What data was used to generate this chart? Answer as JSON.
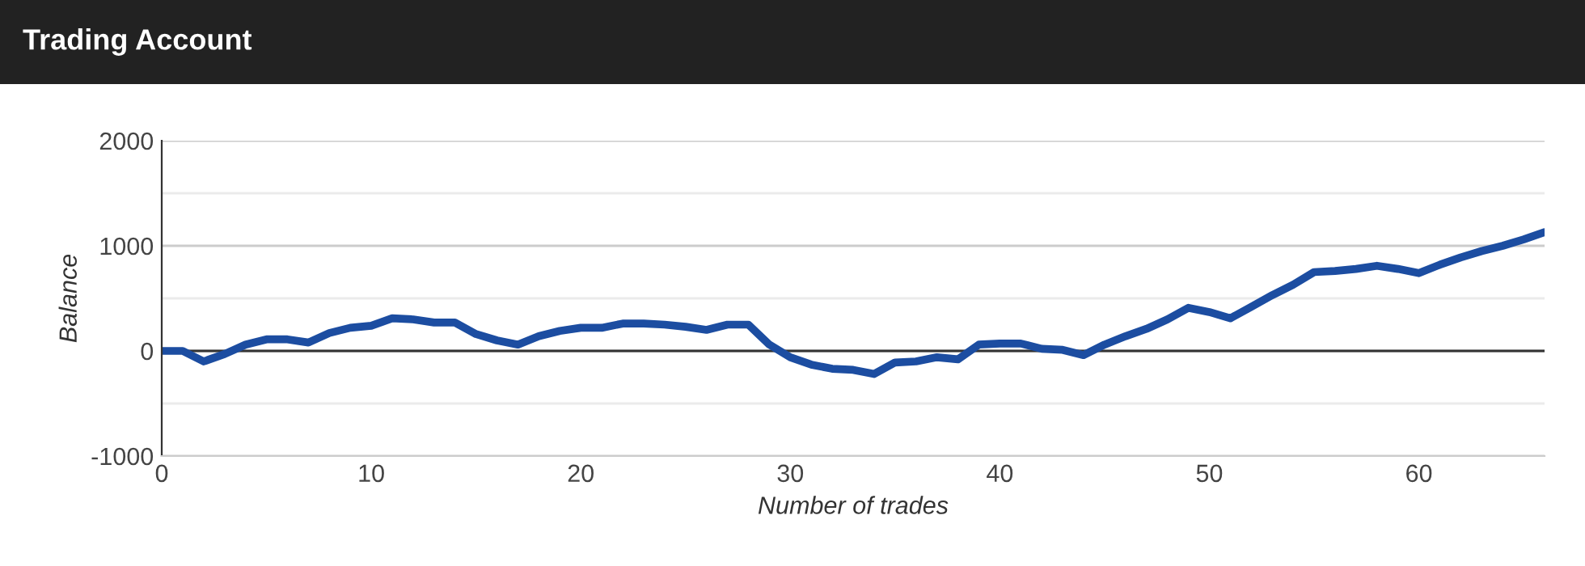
{
  "chart_data": {
    "type": "line",
    "title": "Trading Account",
    "xlabel": "Number of trades",
    "ylabel": "Balance",
    "x": [
      0,
      1,
      2,
      3,
      4,
      5,
      6,
      7,
      8,
      9,
      10,
      11,
      12,
      13,
      14,
      15,
      16,
      17,
      18,
      19,
      20,
      21,
      22,
      23,
      24,
      25,
      26,
      27,
      28,
      29,
      30,
      31,
      32,
      33,
      34,
      35,
      36,
      37,
      38,
      39,
      40,
      41,
      42,
      43,
      44,
      45,
      46,
      47,
      48,
      49,
      50,
      51,
      52,
      53,
      54,
      55,
      56,
      57,
      58,
      59,
      60,
      61,
      62,
      63,
      64,
      65,
      66
    ],
    "series": [
      {
        "color": "#1c4da1",
        "values": [
          0,
          0,
          -100,
          -30,
          60,
          110,
          110,
          80,
          170,
          220,
          240,
          310,
          300,
          270,
          270,
          160,
          100,
          60,
          140,
          190,
          220,
          220,
          260,
          260,
          250,
          230,
          200,
          250,
          250,
          60,
          -60,
          -130,
          -170,
          -180,
          -220,
          -110,
          -100,
          -60,
          -80,
          60,
          70,
          70,
          20,
          10,
          -40,
          60,
          140,
          210,
          300,
          410,
          370,
          310,
          420,
          530,
          630,
          750,
          760,
          780,
          810,
          780,
          740,
          820,
          890,
          950,
          1000,
          1060,
          1130
        ]
      }
    ],
    "xlim": [
      0,
      66
    ],
    "xticks": [
      0,
      10,
      20,
      30,
      40,
      50,
      60
    ],
    "ylim": [
      -1000,
      2000
    ],
    "yticks": [
      -1000,
      {
        "value": -500,
        "label": null
      },
      0,
      {
        "value": 500,
        "label": null
      },
      1000,
      {
        "value": 1500,
        "label": null
      },
      2000
    ],
    "ref_lines": [
      {
        "axis": "y",
        "value": 0,
        "color": "#333333"
      }
    ],
    "grid": "y",
    "legend": false,
    "marker": "none",
    "line_style": "solid"
  }
}
